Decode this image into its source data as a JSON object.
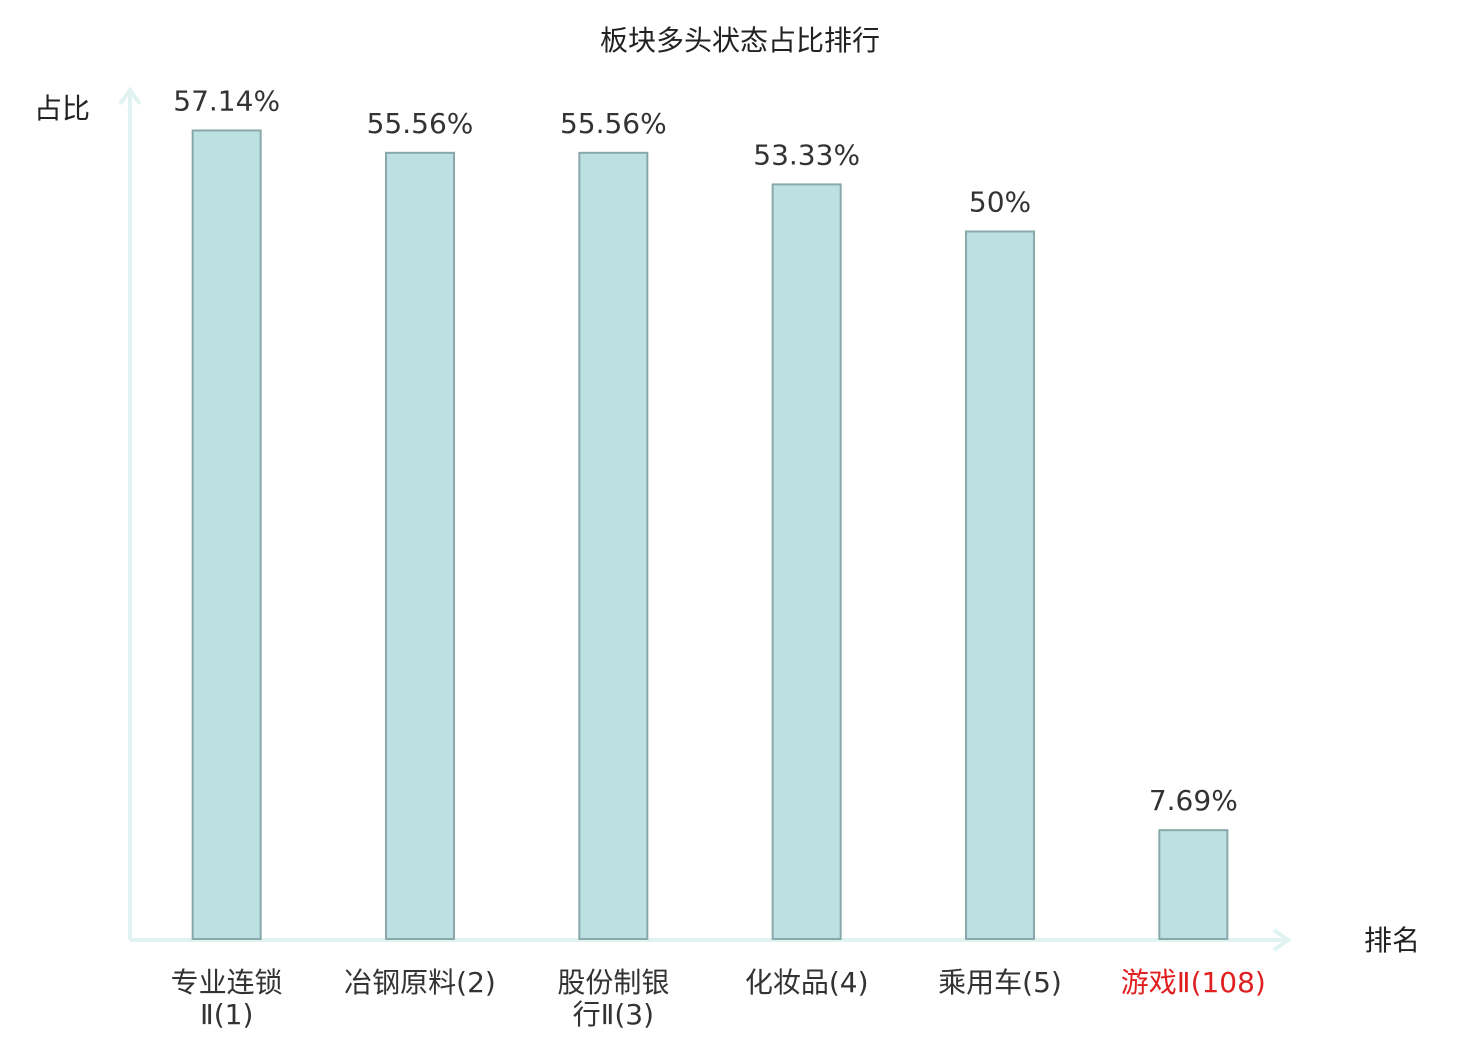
{
  "chart_data": {
    "type": "bar",
    "title": "板块多头状态占比排行",
    "y_label": "占比",
    "x_label": "排名",
    "categories": [
      "专业连锁\nⅡ(1)",
      "冶钢原料(2)",
      "股份制银\n行Ⅱ(3)",
      "化妆品(4)",
      "乘用车(5)",
      "游戏Ⅱ(108)"
    ],
    "values": [
      57.14,
      55.56,
      55.56,
      53.33,
      50,
      7.69
    ],
    "value_labels": [
      "57.14%",
      "55.56%",
      "55.56%",
      "53.33%",
      "50%",
      "7.69%"
    ],
    "color": "#bde0e3",
    "edge_color": "#88a8aa",
    "category_label_colors": [
      "#333333",
      "#333333",
      "#333333",
      "#333333",
      "#333333",
      "#e02020"
    ],
    "ylim": [
      0,
      60
    ]
  }
}
